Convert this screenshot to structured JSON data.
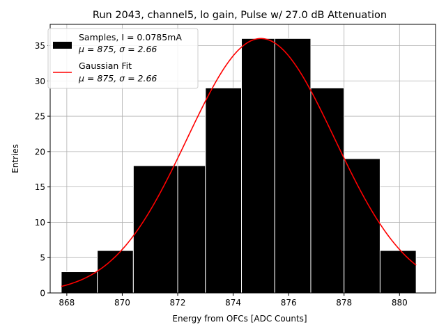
{
  "chart_data": {
    "type": "bar",
    "title": "Run 2043, channel5, lo gain, Pulse w/ 27.0 dB Attenuation",
    "xlabel": "Energy from OFCs [ADC Counts]",
    "ylabel": "Entries",
    "xlim": [
      867.4,
      881.3
    ],
    "ylim": [
      0,
      38
    ],
    "grid": true,
    "legend_position": "upper-left",
    "x_ticks": [
      868,
      870,
      872,
      874,
      876,
      878,
      880
    ],
    "y_ticks": [
      0,
      5,
      10,
      15,
      20,
      25,
      30,
      35
    ],
    "histogram": {
      "name": "Samples, I = 0.0785mA",
      "stats_label": "μ = 875, σ = 2.66",
      "color": "#000000",
      "bins": [
        {
          "x0": 867.8,
          "x1": 869.1,
          "value": 3
        },
        {
          "x0": 869.1,
          "x1": 870.4,
          "value": 6
        },
        {
          "x0": 870.4,
          "x1": 872.0,
          "value": 18
        },
        {
          "x0": 872.0,
          "x1": 873.0,
          "value": 18
        },
        {
          "x0": 873.0,
          "x1": 874.3,
          "value": 29
        },
        {
          "x0": 874.3,
          "x1": 875.5,
          "value": 36
        },
        {
          "x0": 875.5,
          "x1": 876.8,
          "value": 36
        },
        {
          "x0": 876.8,
          "x1": 878.0,
          "value": 29
        },
        {
          "x0": 878.0,
          "x1": 879.3,
          "value": 19
        },
        {
          "x0": 879.3,
          "x1": 880.6,
          "value": 6
        }
      ]
    },
    "fit": {
      "name": "Gaussian Fit",
      "stats_label": "μ = 875, σ = 2.66",
      "color": "#ff0000",
      "mu": 875.0,
      "sigma": 2.66,
      "amplitude": 36.0,
      "x_range": [
        867.8,
        880.6
      ]
    }
  }
}
